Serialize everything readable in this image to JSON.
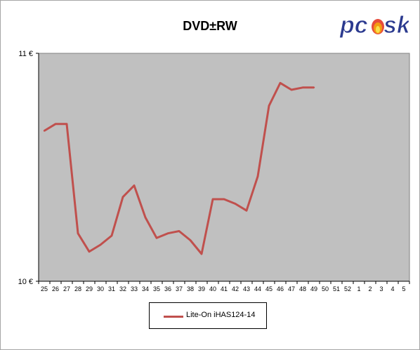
{
  "logo": {
    "text": "pcosk",
    "primary_color": "#2b3a8f",
    "flame_color": "#f39c12"
  },
  "chart_data": {
    "type": "line",
    "title": "DVD±RW",
    "xlabel": "",
    "ylabel": "",
    "categories": [
      "25",
      "26",
      "27",
      "28",
      "29",
      "30",
      "31",
      "32",
      "33",
      "34",
      "35",
      "36",
      "37",
      "38",
      "39",
      "40",
      "41",
      "42",
      "43",
      "44",
      "45",
      "46",
      "47",
      "48",
      "49",
      "50",
      "51",
      "52",
      "1",
      "2",
      "3",
      "4",
      "5"
    ],
    "ylim": [
      10,
      11
    ],
    "y_tick_labels": [
      "10 €",
      "11 €"
    ],
    "series": [
      {
        "name": "Lite-On  iHAS124-14",
        "color": "#c0504d",
        "values": [
          10.66,
          10.69,
          10.69,
          10.21,
          10.13,
          10.16,
          10.2,
          10.37,
          10.42,
          10.28,
          10.19,
          10.21,
          10.22,
          10.18,
          10.12,
          10.36,
          10.36,
          10.34,
          10.31,
          10.46,
          10.77,
          10.87,
          10.84,
          10.85,
          10.85,
          null,
          null,
          null,
          null,
          null,
          null,
          null,
          null
        ]
      }
    ],
    "grid": false,
    "plot_background": "#c0c0c0",
    "legend_position": "bottom"
  }
}
